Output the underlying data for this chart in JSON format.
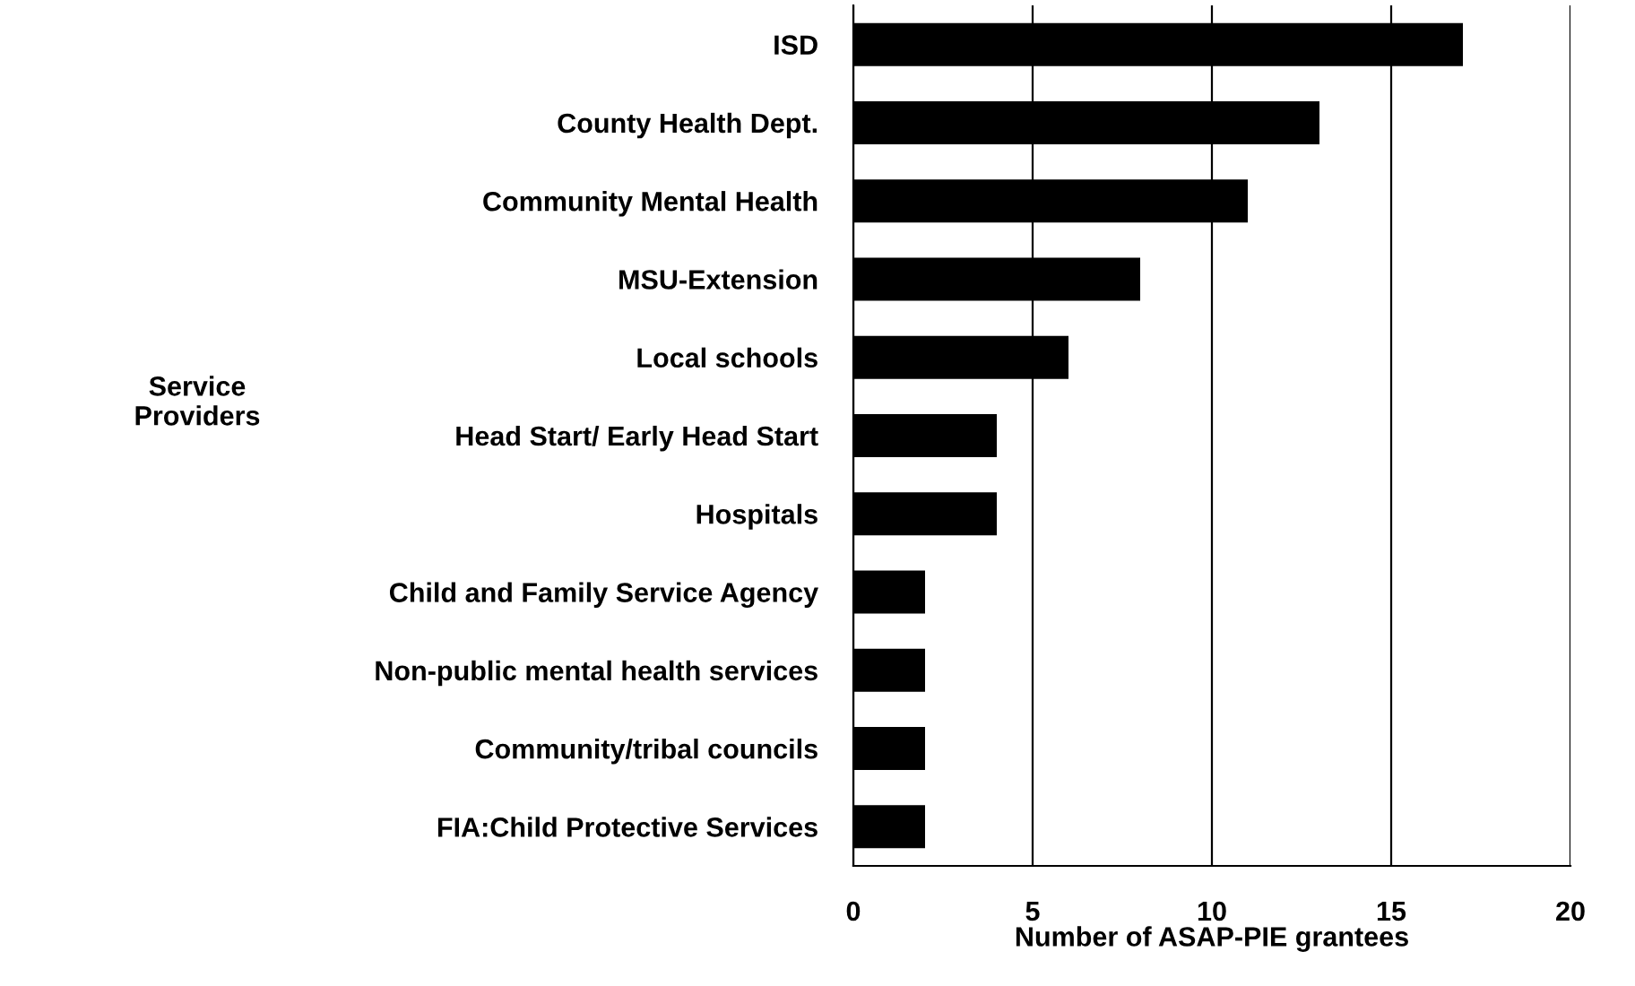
{
  "chart_data": {
    "type": "bar",
    "orientation": "horizontal",
    "xlabel": "Number of ASAP-PIE grantees",
    "ylabel": "Service Providers",
    "categories": [
      "ISD",
      "County Health Dept.",
      "Community Mental Health",
      "MSU-Extension",
      "Local schools",
      "Head Start/ Early Head Start",
      "Hospitals",
      "Child and Family Service Agency",
      "Non-public mental health services",
      "Community/tribal councils",
      "FIA:Child Protective Services"
    ],
    "values": [
      17,
      13,
      11,
      8,
      6,
      4,
      4,
      2,
      2,
      2,
      2
    ],
    "color": "#000000",
    "xlim": [
      0,
      20
    ],
    "xticks": [
      0,
      5,
      10,
      15,
      20
    ],
    "grid": "x",
    "legend": false
  }
}
